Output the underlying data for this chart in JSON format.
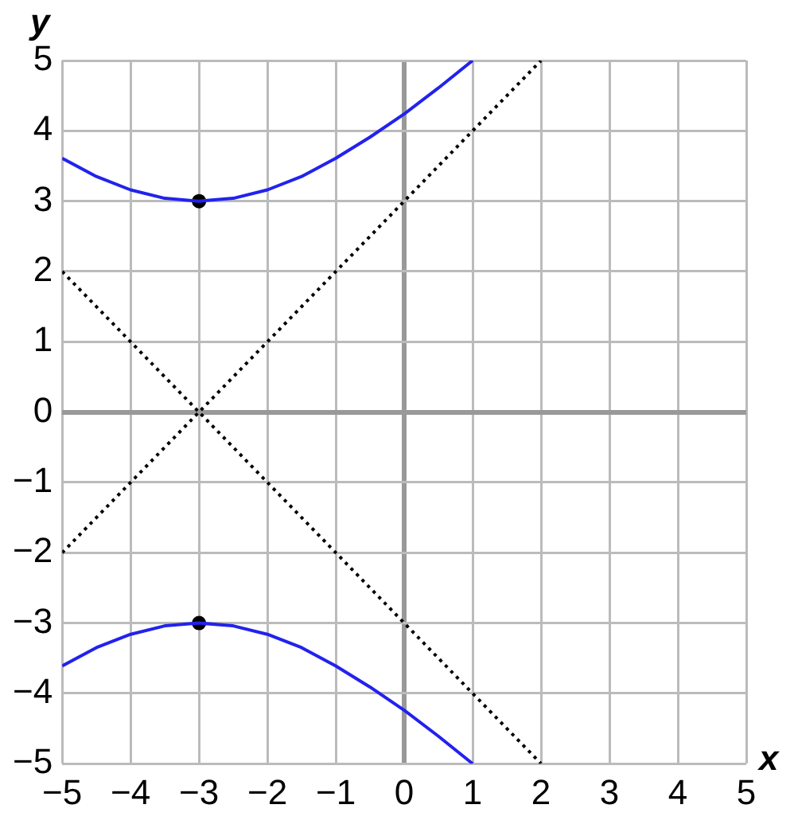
{
  "chart_data": {
    "type": "line",
    "xlabel": "x",
    "ylabel": "y",
    "grid": true,
    "legend": false,
    "xlim": [
      -5,
      5
    ],
    "ylim": [
      -5,
      5
    ],
    "xticks": [
      {
        "value": -5,
        "label": "−5"
      },
      {
        "value": -4,
        "label": "−4"
      },
      {
        "value": -3,
        "label": "−3"
      },
      {
        "value": -2,
        "label": "−2"
      },
      {
        "value": -1,
        "label": "−1"
      },
      0,
      1,
      2,
      3,
      4,
      5
    ],
    "yticks": [
      {
        "value": -5,
        "label": "−5"
      },
      {
        "value": -4,
        "label": "−4"
      },
      {
        "value": -3,
        "label": "−3"
      },
      {
        "value": -2,
        "label": "−2"
      },
      {
        "value": -1,
        "label": "−1"
      },
      0,
      1,
      2,
      3,
      4,
      5
    ],
    "series": [
      {
        "color": "#2222ee",
        "marker": "none",
        "line_style": "solid",
        "x": [
          -5,
          -4.5,
          -4,
          -3.5,
          -3,
          -2.5,
          -2,
          -1.5,
          -1,
          -0.5,
          0,
          0.5,
          1
        ],
        "values": [
          3.61,
          3.35,
          3.16,
          3.04,
          3,
          3.04,
          3.16,
          3.35,
          3.61,
          3.91,
          4.24,
          4.61,
          5
        ]
      },
      {
        "color": "#2222ee",
        "marker": "none",
        "line_style": "solid",
        "x": [
          -5,
          -4.5,
          -4,
          -3.5,
          -3,
          -2.5,
          -2,
          -1.5,
          -1,
          -0.5,
          0,
          0.5,
          1
        ],
        "values": [
          -3.61,
          -3.35,
          -3.16,
          -3.04,
          -3,
          -3.04,
          -3.16,
          -3.35,
          -3.61,
          -3.91,
          -4.24,
          -4.61,
          -5
        ]
      },
      {
        "color": "#000000",
        "marker": "none",
        "line_style": "dotted",
        "x": [
          -5,
          2
        ],
        "values": [
          -2,
          5
        ]
      },
      {
        "color": "#000000",
        "marker": "none",
        "line_style": "dotted",
        "x": [
          -5,
          2
        ],
        "values": [
          2,
          -5
        ]
      },
      {
        "type": "scatter",
        "color": "#000000",
        "marker": "circle",
        "x": [
          -3,
          -3
        ],
        "values": [
          3,
          -3
        ]
      }
    ]
  }
}
